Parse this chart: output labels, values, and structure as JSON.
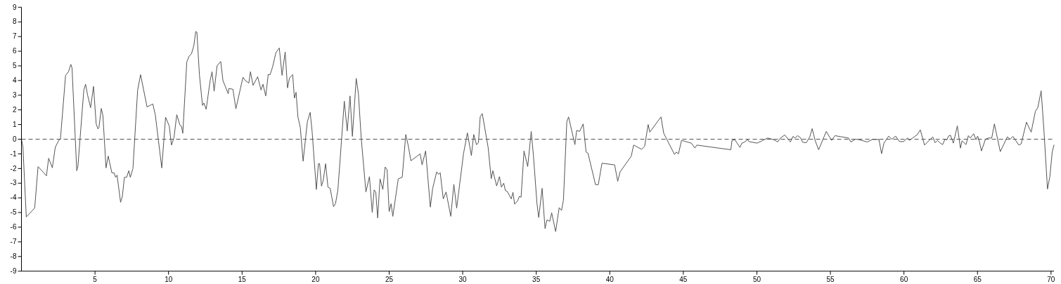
{
  "chart_data": {
    "type": "line",
    "xlim": [
      0,
      70.2
    ],
    "ylim": [
      -9,
      9
    ],
    "xticks": [
      5,
      10,
      15,
      20,
      25,
      30,
      35,
      40,
      45,
      50,
      55,
      60,
      65,
      70
    ],
    "yticks": [
      -9,
      -8,
      -7,
      -6,
      -5,
      -4,
      -3,
      -2,
      -1,
      0,
      1,
      2,
      3,
      4,
      5,
      6,
      7,
      8,
      9
    ],
    "grid": false,
    "marker": "none",
    "ref_lines": [
      {
        "axis": "y",
        "value": 0,
        "color": "#555555",
        "line_style": "dashed"
      }
    ],
    "series": [
      {
        "color": "#555555",
        "line_style": "solid",
        "x": [
          0,
          0.1,
          0.33,
          0.9,
          1.13,
          1.53,
          1.7,
          1.85,
          2.1,
          2.3,
          2.5,
          2.55,
          2.65,
          3.0,
          3.2,
          3.36,
          3.44,
          3.76,
          3.84,
          4.24,
          4.36,
          4.5,
          4.7,
          4.9,
          5.08,
          5.2,
          5.27,
          5.43,
          5.54,
          5.75,
          5.9,
          6.15,
          6.3,
          6.4,
          6.5,
          6.74,
          6.86,
          7.0,
          7.15,
          7.3,
          7.4,
          7.58,
          7.9,
          8.1,
          8.54,
          8.93,
          9.1,
          9.54,
          9.8,
          10.05,
          10.2,
          10.37,
          10.56,
          10.78,
          10.88,
          10.97,
          11.24,
          11.4,
          11.56,
          11.72,
          11.85,
          11.93,
          12.1,
          12.31,
          12.4,
          12.56,
          12.83,
          12.96,
          13.1,
          13.3,
          13.55,
          13.7,
          14.06,
          14.1,
          14.38,
          14.58,
          15.06,
          15.22,
          15.46,
          15.57,
          15.75,
          16.06,
          16.29,
          16.42,
          16.61,
          16.78,
          16.9,
          17.08,
          17.3,
          17.53,
          17.72,
          17.93,
          18.09,
          18.22,
          18.33,
          18.44,
          18.56,
          18.67,
          18.8,
          18.96,
          19.15,
          19.44,
          19.63,
          19.76,
          20.05,
          20.19,
          20.27,
          20.4,
          20.52,
          20.68,
          20.84,
          20.99,
          21.22,
          21.35,
          21.51,
          21.67,
          21.95,
          22.15,
          22.34,
          22.5,
          22.76,
          22.91,
          23.1,
          23.42,
          23.66,
          23.85,
          23.98,
          24.09,
          24.22,
          24.38,
          24.57,
          24.73,
          24.86,
          25.0,
          25.13,
          25.25,
          25.62,
          25.89,
          26.13,
          26.29,
          26.48,
          27.11,
          27.24,
          27.48,
          27.8,
          27.96,
          28.23,
          28.36,
          28.47,
          28.68,
          28.87,
          29.19,
          29.4,
          29.59,
          30.06,
          30.32,
          30.59,
          30.75,
          30.94,
          31.07,
          31.19,
          31.33,
          31.73,
          31.94,
          32.05,
          32.31,
          32.5,
          32.63,
          32.79,
          32.9,
          33.03,
          33.3,
          33.42,
          33.53,
          33.74,
          33.85,
          33.97,
          34.17,
          34.42,
          34.66,
          34.81,
          35.05,
          35.17,
          35.4,
          35.6,
          35.73,
          35.92,
          36.05,
          36.32,
          36.56,
          36.72,
          36.85,
          37.08,
          37.2,
          37.63,
          37.75,
          37.95,
          38.19,
          38.39,
          38.52,
          39.03,
          39.22,
          39.47,
          40.33,
          40.54,
          40.7,
          41.46,
          41.62,
          42.17,
          42.37,
          42.61,
          42.72,
          43.48,
          43.67,
          44.4,
          44.52,
          44.67,
          44.88,
          45.55,
          45.79,
          45.92,
          46.83,
          48.23,
          48.31,
          48.5,
          48.85,
          48.98,
          49.14,
          49.38,
          49.46,
          50.02,
          50.73,
          51.13,
          51.42,
          51.61,
          51.9,
          52.28,
          52.45,
          52.6,
          52.77,
          52.96,
          53.12,
          53.36,
          53.6,
          53.76,
          53.96,
          54.2,
          54.72,
          55.08,
          55.31,
          56.23,
          56.39,
          56.7,
          56.94,
          57.5,
          57.85,
          58.3,
          58.48,
          58.64,
          58.96,
          59.17,
          59.44,
          59.69,
          59.97,
          60.24,
          60.37,
          60.92,
          61.11,
          61.4,
          61.96,
          62.12,
          62.28,
          62.44,
          62.63,
          62.79,
          62.92,
          63.03,
          63.16,
          63.36,
          63.63,
          63.84,
          63.95,
          64.22,
          64.38,
          64.51,
          64.74,
          64.9,
          65.01,
          65.11,
          65.27,
          65.54,
          65.75,
          65.97,
          66.15,
          66.55,
          67.03,
          67.22,
          67.41,
          67.81,
          67.97,
          68.33,
          68.65,
          68.94,
          69.1,
          69.33,
          69.52,
          69.76,
          69.92,
          70.08,
          70.2
        ],
        "values": [
          0,
          -0.5,
          -5.3,
          -4.7,
          -1.87,
          -2.3,
          -2.5,
          -1.3,
          -1.95,
          -0.55,
          -0.15,
          -0.05,
          0,
          4.35,
          4.6,
          5.1,
          4.85,
          -2.15,
          -1.85,
          3.35,
          3.75,
          3.0,
          2.15,
          3.6,
          1.05,
          0.7,
          0.8,
          2.1,
          1.6,
          -1.96,
          -1.15,
          -2.3,
          -2.3,
          -2.6,
          -2.45,
          -4.3,
          -3.9,
          -2.6,
          -2.6,
          -2.15,
          -2.6,
          -2.0,
          3.35,
          4.4,
          2.2,
          2.4,
          1.67,
          -1.96,
          1.5,
          0.9,
          -0.4,
          0.1,
          1.67,
          0.95,
          0.88,
          0.4,
          5.26,
          5.66,
          5.82,
          6.38,
          7.34,
          7.3,
          4.4,
          2.3,
          2.47,
          2.04,
          4.0,
          4.6,
          3.27,
          5.0,
          5.3,
          4.0,
          3.1,
          3.46,
          3.4,
          2.07,
          4.23,
          4.0,
          3.83,
          4.6,
          3.67,
          4.26,
          3.35,
          3.75,
          2.95,
          4.42,
          4.39,
          4.94,
          5.9,
          6.22,
          4.35,
          5.95,
          3.5,
          4.15,
          4.3,
          4.4,
          2.8,
          3.2,
          1.5,
          0.8,
          -1.5,
          1.2,
          1.83,
          0.56,
          -3.43,
          -1.67,
          -1.67,
          -3.2,
          -2.8,
          -1.67,
          -3.27,
          -3.35,
          -4.6,
          -4.4,
          -3.5,
          -1.36,
          2.6,
          0.56,
          2.95,
          0.19,
          4.15,
          3.1,
          0.08,
          -3.6,
          -2.55,
          -5.0,
          -3.46,
          -3.6,
          -5.37,
          -2.7,
          -3.43,
          -1.9,
          -2.07,
          -4.94,
          -4.4,
          -5.26,
          -2.7,
          -2.6,
          0.32,
          -0.4,
          -1.47,
          -1.0,
          -1.75,
          -0.8,
          -4.63,
          -3.35,
          -2.23,
          -2.4,
          -2.28,
          -4.07,
          -3.6,
          -5.26,
          -3.08,
          -4.7,
          -0.96,
          0.43,
          -1.12,
          0.32,
          -0.37,
          -0.24,
          1.52,
          1.75,
          -0.56,
          -2.7,
          -2.15,
          -3.19,
          -2.55,
          -3.27,
          -3.0,
          -3.5,
          -3.56,
          -4.07,
          -3.62,
          -4.43,
          -4.2,
          -3.9,
          -3.96,
          -0.8,
          -1.87,
          0.53,
          -1.12,
          -4.39,
          -5.34,
          -3.35,
          -6.1,
          -5.5,
          -5.6,
          -5.02,
          -6.3,
          -4.67,
          -4.86,
          -4.15,
          1.2,
          1.52,
          -0.37,
          0.6,
          0.53,
          1.04,
          -0.88,
          -0.96,
          -3.1,
          -3.1,
          -1.64,
          -1.75,
          -2.87,
          -2.23,
          -1.16,
          -0.4,
          -0.69,
          -0.48,
          1.0,
          0.48,
          1.52,
          0.4,
          -1.04,
          -0.88,
          -1.0,
          -0.08,
          -0.27,
          -0.6,
          -0.4,
          -0.53,
          -0.72,
          -0.08,
          -0.03,
          -0.56,
          -0.27,
          -0.21,
          -0.03,
          -0.16,
          -0.27,
          0.08,
          -0.03,
          -0.18,
          0.08,
          0.29,
          -0.19,
          0.19,
          0.08,
          0.24,
          0.11,
          -0.21,
          -0.24,
          0.16,
          0.72,
          -0.08,
          -0.72,
          0.53,
          -0.08,
          0.24,
          0.08,
          -0.19,
          0,
          -0.03,
          -0.19,
          -0.02,
          -0.02,
          -0.99,
          -0.27,
          0.21,
          0,
          0.21,
          -0.16,
          -0.16,
          0.08,
          -0.08,
          0.32,
          0.64,
          -0.4,
          0.16,
          -0.24,
          -0.08,
          -0.24,
          -0.37,
          0,
          -0.05,
          0.21,
          0.27,
          -0.27,
          0.91,
          -0.61,
          -0.11,
          -0.37,
          0.24,
          0.08,
          0.37,
          -0.03,
          0.21,
          -0.08,
          -0.8,
          0,
          0.08,
          0.08,
          1.04,
          -0.85,
          0.16,
          0,
          0.19,
          -0.4,
          -0.32,
          1.16,
          0.48,
          1.91,
          2.15,
          3.3,
          0.56,
          -3.4,
          -2.55,
          -0.88,
          -0.4
        ]
      }
    ]
  }
}
